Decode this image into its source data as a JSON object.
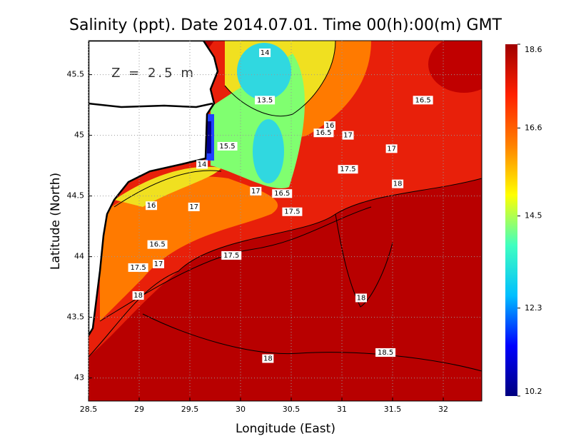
{
  "chart_data": {
    "type": "contour",
    "title": "Salinity (ppt). Date 2014.07.01. Time 00(h):00(m) GMT",
    "x_label": "Longitude (East)",
    "y_label": "Latitude (North)",
    "annotation": "Z = 2.5 m",
    "xlim": [
      28.5,
      32.38
    ],
    "xticks": [
      28.5,
      29,
      29.5,
      30,
      30.5,
      31,
      31.5,
      32
    ],
    "ylim": [
      42.81,
      45.78
    ],
    "yticks": [
      43,
      43.5,
      44,
      44.5,
      45,
      45.5
    ],
    "clim": [
      10.2,
      18.6
    ],
    "cticks": [
      10.2,
      12.3,
      14.5,
      16.6,
      18.6
    ],
    "colormap": [
      "#00007f",
      "#0000ff",
      "#00bfff",
      "#40ffc0",
      "#ffff00",
      "#ff8000",
      "#ff2000",
      "#a00000"
    ],
    "grid": true,
    "contour_labels": [
      {
        "value": 14,
        "lon": 30.24,
        "lat": 45.68
      },
      {
        "value": 13.5,
        "lon": 30.24,
        "lat": 45.29
      },
      {
        "value": 16.5,
        "lon": 31.8,
        "lat": 45.29
      },
      {
        "value": 16,
        "lon": 30.88,
        "lat": 45.08
      },
      {
        "value": 16.5,
        "lon": 30.82,
        "lat": 45.02
      },
      {
        "value": 17,
        "lon": 31.06,
        "lat": 45.0
      },
      {
        "value": 15.5,
        "lon": 29.87,
        "lat": 44.91
      },
      {
        "value": 14,
        "lon": 29.62,
        "lat": 44.76
      },
      {
        "value": 17,
        "lon": 31.49,
        "lat": 44.89
      },
      {
        "value": 17.5,
        "lon": 31.06,
        "lat": 44.72
      },
      {
        "value": 16,
        "lon": 29.12,
        "lat": 44.42
      },
      {
        "value": 17,
        "lon": 29.54,
        "lat": 44.41
      },
      {
        "value": 17,
        "lon": 30.15,
        "lat": 44.54
      },
      {
        "value": 16.5,
        "lon": 30.41,
        "lat": 44.52
      },
      {
        "value": 18,
        "lon": 31.55,
        "lat": 44.6
      },
      {
        "value": 17.5,
        "lon": 30.51,
        "lat": 44.37
      },
      {
        "value": 16.5,
        "lon": 29.18,
        "lat": 44.1
      },
      {
        "value": 17.5,
        "lon": 29.91,
        "lat": 44.01
      },
      {
        "value": 17.5,
        "lon": 28.99,
        "lat": 43.91
      },
      {
        "value": 17,
        "lon": 29.19,
        "lat": 43.94
      },
      {
        "value": 18,
        "lon": 28.99,
        "lat": 43.68
      },
      {
        "value": 18,
        "lon": 31.19,
        "lat": 43.66
      },
      {
        "value": 18,
        "lon": 30.27,
        "lat": 43.16
      },
      {
        "value": 18.5,
        "lon": 31.43,
        "lat": 43.21
      }
    ]
  }
}
